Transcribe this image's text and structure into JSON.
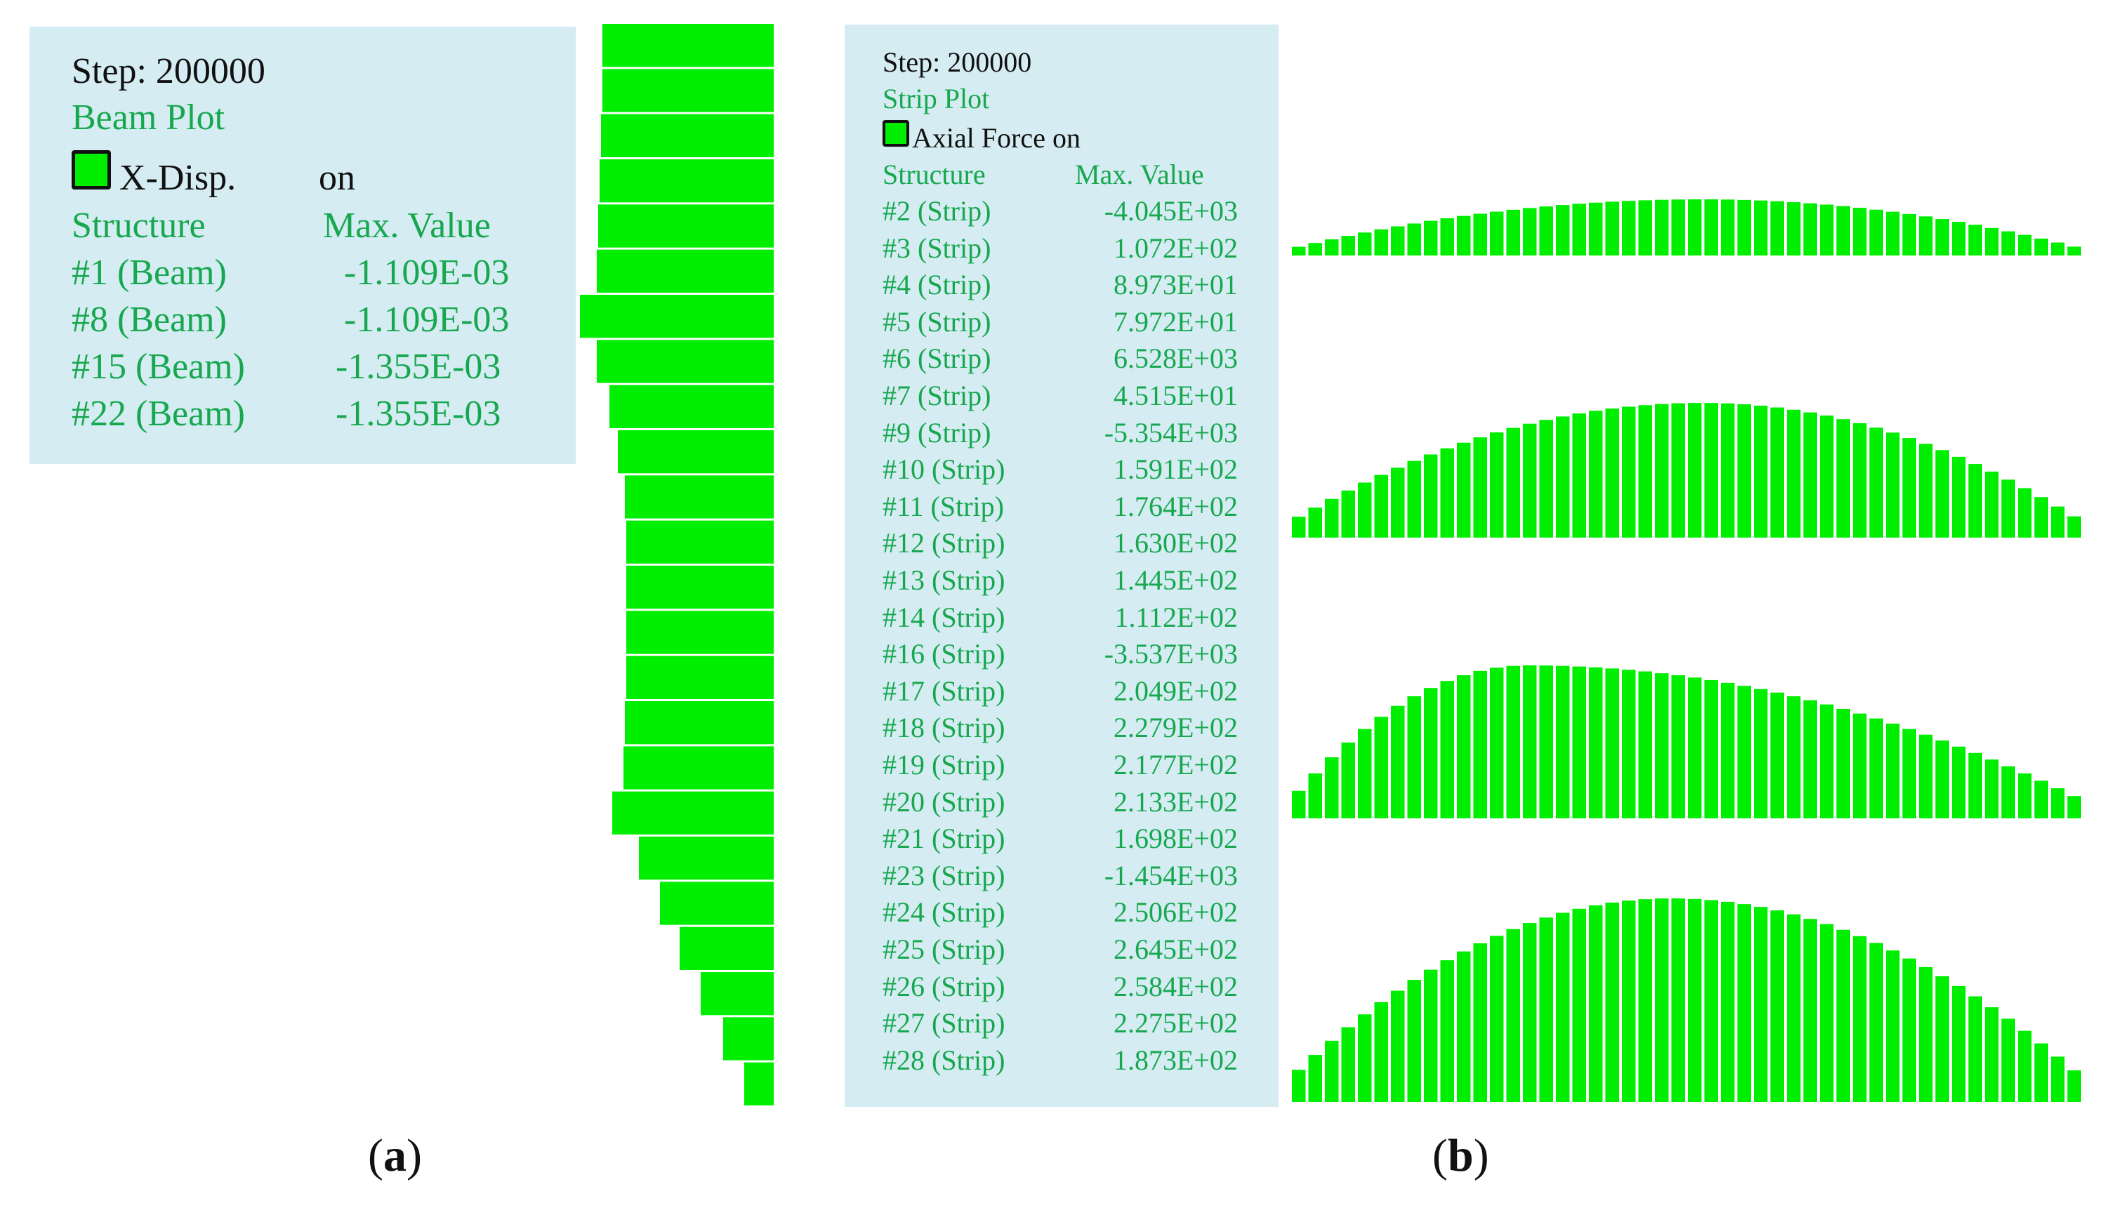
{
  "panel_a": {
    "caption_open": "(",
    "caption_letter": "a",
    "caption_close": ")",
    "legend": {
      "step": "Step: 200000",
      "plot_title": "Beam Plot",
      "item_label": "X-Disp.",
      "item_state": "on",
      "col_structure": "Structure",
      "col_max": "Max. Value",
      "rows": [
        {
          "structure": "#1 (Beam)",
          "value": "-1.109E-03"
        },
        {
          "structure": "#8 (Beam)",
          "value": "-1.109E-03"
        },
        {
          "structure": "#15 (Beam)",
          "value": "-1.355E-03"
        },
        {
          "structure": "#22 (Beam)",
          "value": "-1.355E-03"
        }
      ]
    },
    "colors": {
      "fill": "#00ee00",
      "legend_bg": "#d4ecf2",
      "legend_green": "#17a84f"
    }
  },
  "panel_b": {
    "caption_open": "(",
    "caption_letter": "b",
    "caption_close": ")",
    "legend": {
      "step": "Step: 200000",
      "plot_title": "Strip Plot",
      "item_label": "Axial Force on",
      "col_structure": "Structure",
      "col_max": "Max. Value",
      "rows": [
        {
          "structure": "#2 (Strip)",
          "value": "-4.045E+03"
        },
        {
          "structure": "#3 (Strip)",
          "value": "1.072E+02"
        },
        {
          "structure": "#4 (Strip)",
          "value": "8.973E+01"
        },
        {
          "structure": "#5 (Strip)",
          "value": "7.972E+01"
        },
        {
          "structure": "#6 (Strip)",
          "value": "6.528E+03"
        },
        {
          "structure": "#7 (Strip)",
          "value": "4.515E+01"
        },
        {
          "structure": "#9 (Strip)",
          "value": "-5.354E+03"
        },
        {
          "structure": "#10 (Strip)",
          "value": "1.591E+02"
        },
        {
          "structure": "#11 (Strip)",
          "value": "1.764E+02"
        },
        {
          "structure": "#12 (Strip)",
          "value": "1.630E+02"
        },
        {
          "structure": "#13 (Strip)",
          "value": "1.445E+02"
        },
        {
          "structure": "#14 (Strip)",
          "value": "1.112E+02"
        },
        {
          "structure": "#16 (Strip)",
          "value": "-3.537E+03"
        },
        {
          "structure": "#17 (Strip)",
          "value": "2.049E+02"
        },
        {
          "structure": "#18 (Strip)",
          "value": "2.279E+02"
        },
        {
          "structure": "#19 (Strip)",
          "value": "2.177E+02"
        },
        {
          "structure": "#20 (Strip)",
          "value": "2.133E+02"
        },
        {
          "structure": "#21 (Strip)",
          "value": "1.698E+02"
        },
        {
          "structure": "#23 (Strip)",
          "value": "-1.454E+03"
        },
        {
          "structure": "#24 (Strip)",
          "value": "2.506E+02"
        },
        {
          "structure": "#25 (Strip)",
          "value": "2.645E+02"
        },
        {
          "structure": "#26 (Strip)",
          "value": "2.584E+02"
        },
        {
          "structure": "#27 (Strip)",
          "value": "2.275E+02"
        },
        {
          "structure": "#28 (Strip)",
          "value": "1.873E+02"
        }
      ]
    },
    "colors": {
      "fill": "#00ee00",
      "legend_bg": "#d4ecf2",
      "legend_green": "#17a84f"
    }
  }
}
